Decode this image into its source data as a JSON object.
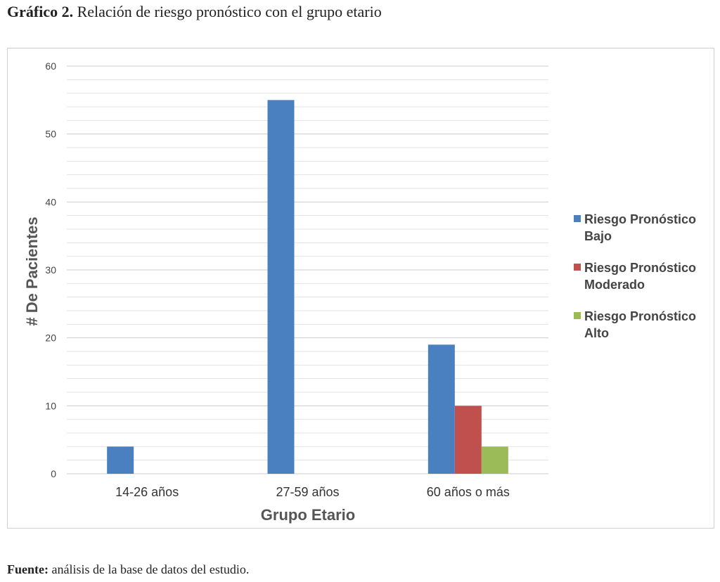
{
  "caption": {
    "label": "Gráfico 2.",
    "text": " Relación de riesgo pronóstico con el grupo etario"
  },
  "footer": {
    "label": "Fuente:",
    "text": " análisis de la base de datos del estudio."
  },
  "colors": {
    "bajo": "#4a80c0",
    "moderado": "#c0504d",
    "alto": "#9bbb59",
    "grid": "#e3e3e3",
    "axis": "#cfcfcf"
  },
  "chart_data": {
    "type": "bar",
    "title": "",
    "xlabel": "Grupo Etario",
    "ylabel": "# De Pacientes",
    "categories": [
      "14-26 años",
      "27-59 años",
      "60 años o más"
    ],
    "series": [
      {
        "name": "Riesgo Pronóstico Bajo",
        "values": [
          4,
          55,
          19
        ],
        "color": "#4a80c0"
      },
      {
        "name": "Riesgo Pronóstico Moderado",
        "values": [
          0,
          0,
          10
        ],
        "color": "#c0504d"
      },
      {
        "name": "Riesgo Pronóstico Alto",
        "values": [
          0,
          0,
          4
        ],
        "color": "#9bbb59"
      }
    ],
    "ylim": [
      0,
      60
    ],
    "yticks": [
      0,
      10,
      20,
      30,
      40,
      50,
      60
    ],
    "grid": true,
    "minor_grid_step": 2,
    "legend_position": "right"
  }
}
